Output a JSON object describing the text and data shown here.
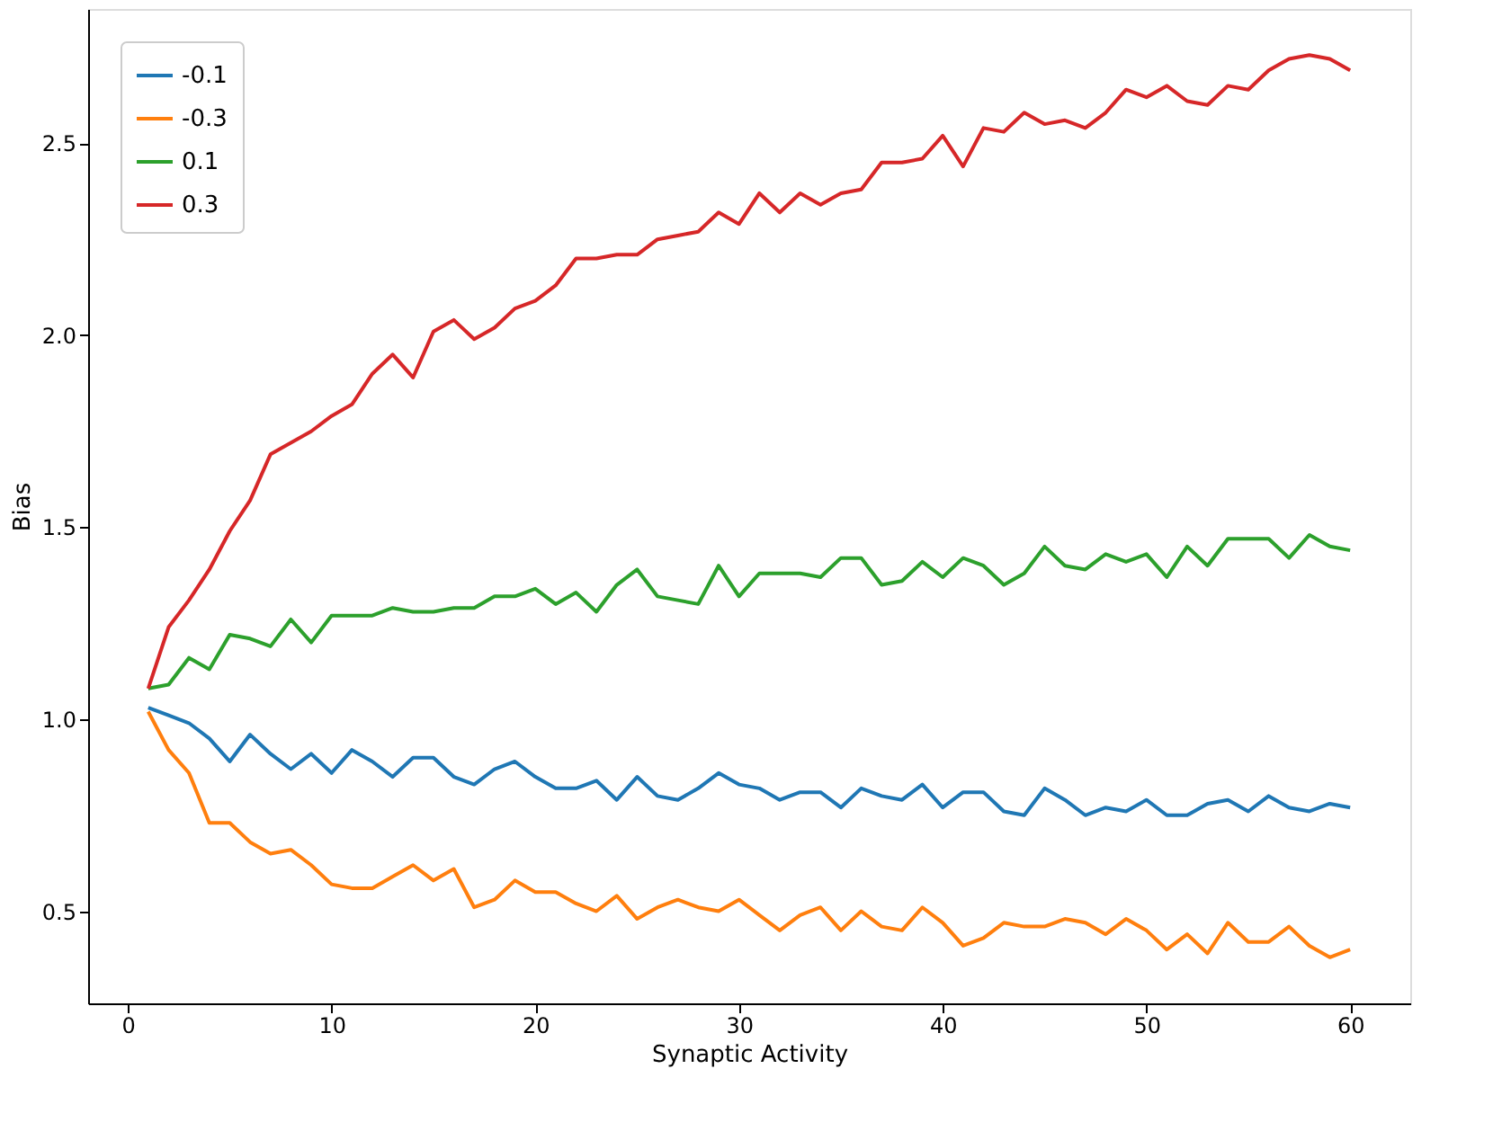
{
  "chart_data": {
    "type": "line",
    "xlabel": "Synaptic Activity",
    "ylabel": "Bias",
    "x": [
      1,
      2,
      3,
      4,
      5,
      6,
      7,
      8,
      9,
      10,
      11,
      12,
      13,
      14,
      15,
      16,
      17,
      18,
      19,
      20,
      21,
      22,
      23,
      24,
      25,
      26,
      27,
      28,
      29,
      30,
      31,
      32,
      33,
      34,
      35,
      36,
      37,
      38,
      39,
      40,
      41,
      42,
      43,
      44,
      45,
      46,
      47,
      48,
      49,
      50,
      51,
      52,
      53,
      54,
      55,
      56,
      57,
      58,
      59,
      60
    ],
    "series": [
      {
        "name": "-0.1",
        "color": "#1f77b4",
        "values": [
          1.03,
          1.01,
          0.99,
          0.95,
          0.89,
          0.96,
          0.91,
          0.87,
          0.91,
          0.86,
          0.92,
          0.89,
          0.85,
          0.9,
          0.9,
          0.85,
          0.83,
          0.87,
          0.89,
          0.85,
          0.82,
          0.82,
          0.84,
          0.79,
          0.85,
          0.8,
          0.79,
          0.82,
          0.86,
          0.83,
          0.82,
          0.79,
          0.81,
          0.81,
          0.77,
          0.82,
          0.8,
          0.79,
          0.83,
          0.77,
          0.81,
          0.81,
          0.76,
          0.75,
          0.82,
          0.79,
          0.75,
          0.77,
          0.76,
          0.79,
          0.75,
          0.75,
          0.78,
          0.79,
          0.76,
          0.8,
          0.77,
          0.76,
          0.78,
          0.77
        ]
      },
      {
        "name": "-0.3",
        "color": "#ff7f0e",
        "values": [
          1.02,
          0.92,
          0.86,
          0.73,
          0.73,
          0.68,
          0.65,
          0.66,
          0.62,
          0.57,
          0.56,
          0.56,
          0.59,
          0.62,
          0.58,
          0.61,
          0.51,
          0.53,
          0.58,
          0.55,
          0.55,
          0.52,
          0.5,
          0.54,
          0.48,
          0.51,
          0.53,
          0.51,
          0.5,
          0.53,
          0.49,
          0.45,
          0.49,
          0.51,
          0.45,
          0.5,
          0.46,
          0.45,
          0.51,
          0.47,
          0.41,
          0.43,
          0.47,
          0.46,
          0.46,
          0.48,
          0.47,
          0.44,
          0.48,
          0.45,
          0.4,
          0.44,
          0.39,
          0.47,
          0.42,
          0.42,
          0.46,
          0.41,
          0.38,
          0.4
        ]
      },
      {
        "name": "0.1",
        "color": "#2ca02c",
        "values": [
          1.08,
          1.09,
          1.16,
          1.13,
          1.22,
          1.21,
          1.19,
          1.26,
          1.2,
          1.27,
          1.27,
          1.27,
          1.29,
          1.28,
          1.28,
          1.29,
          1.29,
          1.32,
          1.32,
          1.34,
          1.3,
          1.33,
          1.28,
          1.35,
          1.39,
          1.32,
          1.31,
          1.3,
          1.4,
          1.32,
          1.38,
          1.38,
          1.38,
          1.37,
          1.42,
          1.42,
          1.35,
          1.36,
          1.41,
          1.37,
          1.42,
          1.4,
          1.35,
          1.38,
          1.45,
          1.4,
          1.39,
          1.43,
          1.41,
          1.43,
          1.37,
          1.45,
          1.4,
          1.47,
          1.47,
          1.47,
          1.42,
          1.48,
          1.45,
          1.44
        ]
      },
      {
        "name": "0.3",
        "color": "#d62728",
        "values": [
          1.08,
          1.24,
          1.31,
          1.39,
          1.49,
          1.57,
          1.69,
          1.72,
          1.75,
          1.79,
          1.82,
          1.9,
          1.95,
          1.89,
          2.01,
          2.04,
          1.99,
          2.02,
          2.07,
          2.09,
          2.13,
          2.2,
          2.2,
          2.21,
          2.21,
          2.25,
          2.26,
          2.27,
          2.32,
          2.29,
          2.37,
          2.32,
          2.37,
          2.34,
          2.37,
          2.38,
          2.45,
          2.45,
          2.46,
          2.52,
          2.44,
          2.54,
          2.53,
          2.58,
          2.55,
          2.56,
          2.54,
          2.58,
          2.64,
          2.62,
          2.65,
          2.61,
          2.6,
          2.65,
          2.64,
          2.69,
          2.72,
          2.73,
          2.72,
          2.69
        ]
      }
    ],
    "xlim": [
      -1.95,
      62.95
    ],
    "xticks": [
      0,
      10,
      20,
      30,
      40,
      50,
      60
    ],
    "ylim": [
      0.26,
      2.85
    ],
    "yticks": [
      {
        "value": 0.5,
        "label": "0.5"
      },
      {
        "value": 1.0,
        "label": "1.0"
      },
      {
        "value": 1.5,
        "label": "1.5"
      },
      {
        "value": 2.0,
        "label": "2.0"
      },
      {
        "value": 2.5,
        "label": "2.5"
      }
    ],
    "legend": "top left",
    "grid": false,
    "line_style": "solid",
    "marker": "none"
  }
}
